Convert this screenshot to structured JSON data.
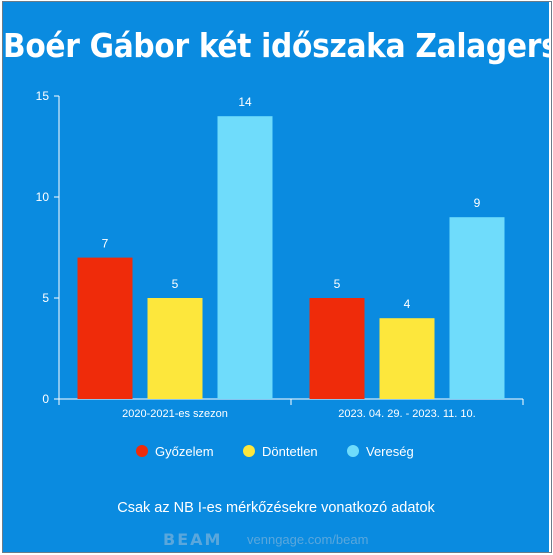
{
  "title": "Boér Gábor két időszaka Zalagerszegen",
  "footnote": "Csak az NB I-es mérkőzésekre vonatkozó adatok",
  "branding": {
    "logo": "BEAM",
    "url": "venngage.com/beam"
  },
  "colors": {
    "background": "#0a8be0",
    "axis": "#ffffff"
  },
  "chart_data": {
    "type": "bar",
    "title": "Boér Gábor két időszaka Zalagerszegen",
    "categories": [
      "2020-2021-es szezon",
      "2023. 04. 29. - 2023. 11. 10."
    ],
    "series": [
      {
        "name": "Győzelem",
        "values": [
          7,
          5
        ],
        "color": "#ef2b0a"
      },
      {
        "name": "Döntetlen",
        "values": [
          5,
          4
        ],
        "color": "#fde73c"
      },
      {
        "name": "Vereség",
        "values": [
          14,
          9
        ],
        "color": "#6fdcfb"
      }
    ],
    "ylim": [
      0,
      15
    ],
    "yticks": [
      0,
      5,
      10,
      15
    ],
    "xlabel": "",
    "ylabel": "",
    "grid": false,
    "legend": "bottom"
  }
}
